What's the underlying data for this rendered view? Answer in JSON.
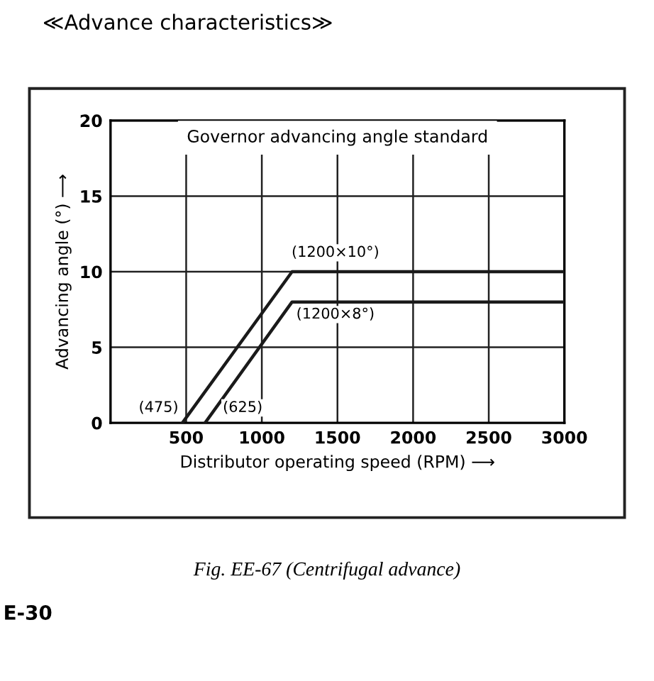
{
  "chart_data": {
    "type": "line",
    "title": "≪Advance characteristics≫",
    "subtitle": "Governor advancing angle standard",
    "xlabel": "Distributor operating speed (RPM) ⟶",
    "ylabel": "Advancing angle (°) ⟶",
    "series": [
      {
        "color": "#1a1a1a",
        "x": [
          475,
          1200,
          3000
        ],
        "values": [
          0,
          10,
          10
        ]
      },
      {
        "color": "#1a1a1a",
        "x": [
          625,
          1200,
          3000
        ],
        "values": [
          0,
          8,
          8
        ]
      }
    ],
    "xlim": [
      0,
      3000
    ],
    "ylim": [
      0,
      20
    ],
    "xticks": [
      500,
      1000,
      1500,
      2000,
      2500,
      3000
    ],
    "yticks": [
      0,
      5,
      10,
      15,
      20
    ],
    "grid": true,
    "marker": "none",
    "line_style": "solid",
    "annotations": [
      {
        "text": "(1200×10°)",
        "x": 1200,
        "y": 10
      },
      {
        "text": "(1200×8°)",
        "x": 1200,
        "y": 8
      },
      {
        "text": "(475)",
        "x": 475,
        "y": 0
      },
      {
        "text": "(625)",
        "x": 625,
        "y": 0
      },
      "Fig. EE-67 (Centrifugal advance)",
      "E-30"
    ]
  }
}
